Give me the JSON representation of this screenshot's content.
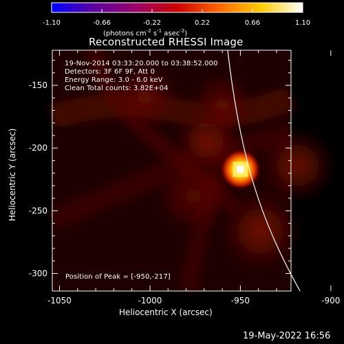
{
  "colorbar": {
    "ticks": [
      "-1.10",
      "-0.66",
      "-0.22",
      "0.22",
      "0.66",
      "1.10"
    ],
    "unit_label": {
      "prefix": "(photons cm",
      "sup1": "-2",
      "middle": " s",
      "sup2": "-1",
      "middle2": " asec",
      "sup3": "-2",
      "suffix": ")"
    },
    "colors": [
      "#0000ff",
      "#5a00a0",
      "#9a006a",
      "#cb0000",
      "#ff6600",
      "#ffcc00",
      "#ffffff"
    ]
  },
  "plot": {
    "title": "Reconstructed RHESSI Image",
    "overlay": {
      "line1": "19-Nov-2014 03:33:20.000 to 03:38:52.000",
      "line2": "Detectors: 3F 6F 9F, Att 0",
      "line3": "Energy Range: 3.0 - 6.0 keV",
      "line4": "Clean    Total counts: 3.82E+04"
    },
    "peak_text": "Position of Peak = [-950,-217]",
    "xlabel": "Heliocentric X (arcsec)",
    "ylabel": "Heliocentric Y (arcsec)",
    "x_ticks": [
      "-1050",
      "-1000",
      "-950",
      "-900"
    ],
    "y_ticks": [
      "-150",
      "-200",
      "-250",
      "-300"
    ]
  },
  "footer": {
    "timestamp": "19-May-2022 16:56"
  },
  "chart_data": {
    "type": "heatmap",
    "title": "Reconstructed RHESSI Image",
    "xlabel": "Heliocentric X (arcsec)",
    "ylabel": "Heliocentric Y (arcsec)",
    "xlim": [
      -1054,
      -922
    ],
    "ylim": [
      -314,
      -122
    ],
    "colorbar_range": [
      -1.1,
      1.1
    ],
    "colorbar_ticks": [
      -1.1,
      -0.66,
      -0.22,
      0.22,
      0.66,
      1.1
    ],
    "peak": {
      "x": -950,
      "y": -217
    },
    "limb_curve": [
      {
        "x": -957,
        "y": -122
      },
      {
        "x": -950,
        "y": -210
      },
      {
        "x": -938,
        "y": -260
      },
      {
        "x": -917,
        "y": -314
      }
    ],
    "sources": [
      {
        "x": -950,
        "y": -217,
        "peak_level": 1.1,
        "sigma": 6
      },
      {
        "x": -960,
        "y": -165,
        "peak_level": 0.16,
        "sigma": 10
      },
      {
        "x": -969,
        "y": -194,
        "peak_level": 0.12,
        "sigma": 10
      },
      {
        "x": -976,
        "y": -238,
        "peak_level": 0.14,
        "sigma": 12
      },
      {
        "x": -939,
        "y": -266,
        "peak_level": 0.1,
        "sigma": 13
      },
      {
        "x": -1003,
        "y": -159,
        "peak_level": 0.09,
        "sigma": 11
      },
      {
        "x": -918,
        "y": -214,
        "peak_level": 0.07,
        "sigma": 12
      }
    ],
    "background_level": 0.04
  }
}
